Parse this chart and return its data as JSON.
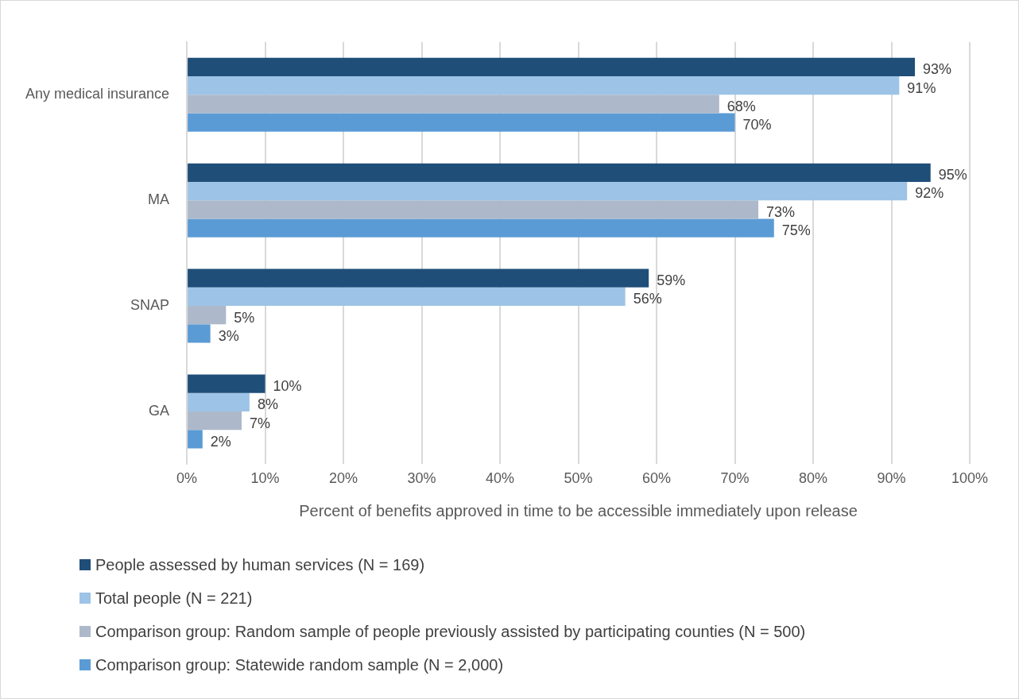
{
  "chart_data": {
    "type": "bar",
    "orientation": "horizontal",
    "xlabel": "Percent of benefits approved in time to be accessible immediately upon release",
    "categories": [
      "Any medical insurance",
      "MA",
      "SNAP",
      "GA"
    ],
    "series": [
      {
        "name": "People assessed by human services (N = 169)",
        "color": "#1f4e79",
        "values": [
          93,
          95,
          59,
          10
        ],
        "value_labels": [
          "93%",
          "95%",
          "59%",
          "10%"
        ]
      },
      {
        "name": "Total people (N = 221)",
        "color": "#9dc3e6",
        "values": [
          91,
          92,
          56,
          8
        ],
        "value_labels": [
          "91%",
          "92%",
          "56%",
          "8%"
        ]
      },
      {
        "name": "Comparison group: Random sample of people previously assisted by participating counties (N = 500)",
        "color": "#adb9ca",
        "values": [
          68,
          73,
          5,
          7
        ],
        "value_labels": [
          "68%",
          "73%",
          "5%",
          "7%"
        ]
      },
      {
        "name": "Comparison group: Statewide random sample (N = 2,000)",
        "color": "#5b9bd5",
        "values": [
          70,
          75,
          3,
          2
        ],
        "value_labels": [
          "70%",
          "75%",
          "3%",
          "2%"
        ]
      }
    ],
    "xlim": [
      0,
      100
    ],
    "xticks": [
      {
        "value": 0,
        "label": "0%"
      },
      {
        "value": 10,
        "label": "10%"
      },
      {
        "value": 20,
        "label": "20%"
      },
      {
        "value": 30,
        "label": "30%"
      },
      {
        "value": 40,
        "label": "40%"
      },
      {
        "value": 50,
        "label": "50%"
      },
      {
        "value": 60,
        "label": "60%"
      },
      {
        "value": 70,
        "label": "70%"
      },
      {
        "value": 80,
        "label": "80%"
      },
      {
        "value": 90,
        "label": "90%"
      },
      {
        "value": 100,
        "label": "100%"
      }
    ],
    "grid": "x",
    "legend": "bottom"
  }
}
